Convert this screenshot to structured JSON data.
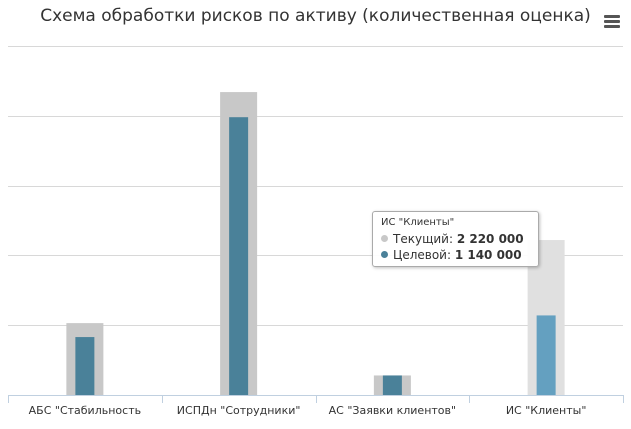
{
  "chart_data": {
    "type": "bar",
    "title": "Схема обработки рисков по активу (количественная оценка)",
    "xlabel": "",
    "ylabel": "",
    "ylim": [
      0,
      5000000
    ],
    "grid": true,
    "categories": [
      "АБС \"Стабильность",
      "ИСПДн \"Сотрудники\"",
      "АС \"Заявки клиентов\"",
      "ИС \"Клиенты\""
    ],
    "series": [
      {
        "name": "Текущий",
        "color": "#c8c8c8",
        "hover_color": "#e0e0e0",
        "values": [
          1030000,
          4340000,
          280000,
          2220000
        ]
      },
      {
        "name": "Целевой",
        "color": "#4a8199",
        "hover_color": "#64a0c0",
        "values": [
          830000,
          3980000,
          280000,
          1140000
        ]
      }
    ],
    "hovered_category": 3,
    "tooltip": {
      "title": "ИС \"Клиенты\"",
      "rows": [
        {
          "label": "Текущий",
          "value": "2 220 000",
          "color": "#c8c8c8"
        },
        {
          "label": "Целевой",
          "value": "1 140 000",
          "color": "#4a8199"
        }
      ]
    }
  },
  "menu_icon": "hamburger-menu-icon",
  "colors": {
    "grid": "#d8d8d8",
    "axis": "#c0d0e0",
    "label": "#333333"
  }
}
